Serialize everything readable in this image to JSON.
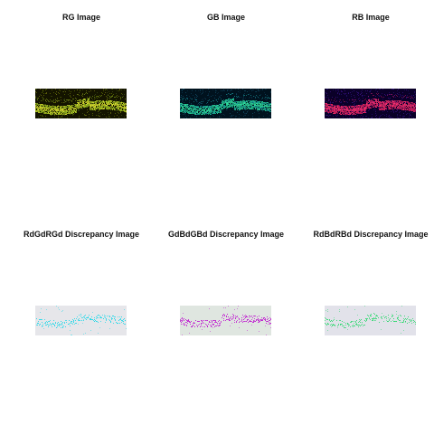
{
  "figure": {
    "panels": [
      {
        "title": "RG Image",
        "kind": "rg"
      },
      {
        "title": "GB Image",
        "kind": "gb"
      },
      {
        "title": "RB Image",
        "kind": "rb"
      },
      {
        "title": "RdGdRGd Discrepancy Image",
        "kind": "d_cyan"
      },
      {
        "title": "GdBdGBd Discrepancy Image",
        "kind": "d_magenta"
      },
      {
        "title": "RdBdRBd Discrepancy Image",
        "kind": "d_green"
      }
    ]
  }
}
